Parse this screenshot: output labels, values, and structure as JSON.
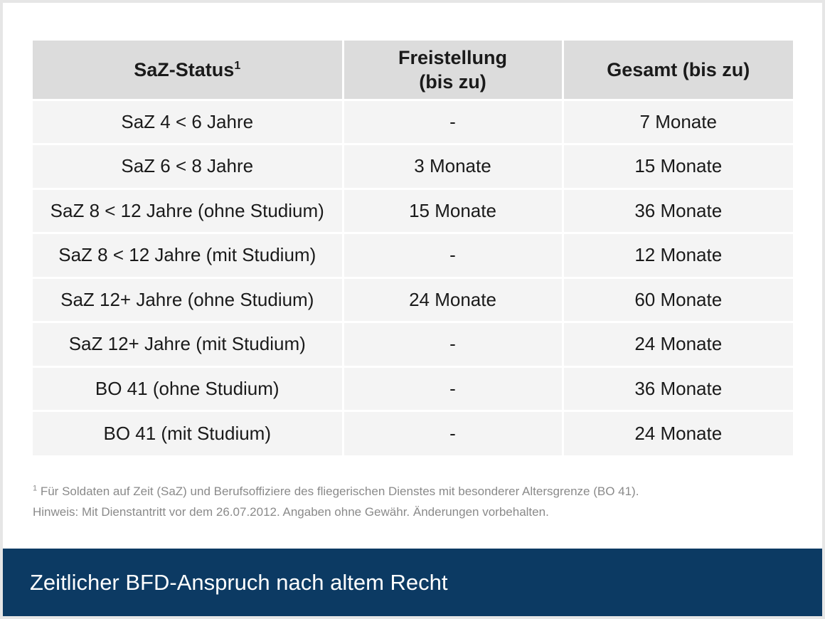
{
  "table": {
    "headers": {
      "status": "SaZ-Status",
      "status_sup": "1",
      "freistellung_line1": "Freistellung",
      "freistellung_line2": "(bis zu)",
      "gesamt": "Gesamt (bis zu)"
    },
    "rows": [
      {
        "status": "SaZ 4 < 6 Jahre",
        "freistellung": "-",
        "gesamt": "7 Monate"
      },
      {
        "status": "SaZ 6 < 8 Jahre",
        "freistellung": "3 Monate",
        "gesamt": "15 Monate"
      },
      {
        "status": "SaZ 8 < 12 Jahre (ohne Studium)",
        "freistellung": "15 Monate",
        "gesamt": "36 Monate"
      },
      {
        "status": "SaZ 8 < 12 Jahre (mit Studium)",
        "freistellung": "-",
        "gesamt": "12 Monate"
      },
      {
        "status": "SaZ 12+ Jahre (ohne Studium)",
        "freistellung": "24 Monate",
        "gesamt": "60 Monate"
      },
      {
        "status": "SaZ 12+ Jahre (mit Studium)",
        "freistellung": "-",
        "gesamt": "24 Monate"
      },
      {
        "status": "BO 41 (ohne Studium)",
        "freistellung": "-",
        "gesamt": "36 Monate"
      },
      {
        "status": "BO 41 (mit Studium)",
        "freistellung": "-",
        "gesamt": "24 Monate"
      }
    ]
  },
  "notes": {
    "footnote_marker": "1",
    "footnote": " Für Soldaten auf Zeit (SaZ) und Berufsoffiziere des fliegerischen Dienstes mit besonderer Altersgrenze (BO 41).",
    "hint": "Hinweis: Mit Dienstantritt vor dem 26.07.2012. Angaben ohne Gewähr. Änderungen vorbehalten."
  },
  "footer": {
    "title": "Zeitlicher BFD-Anspruch nach altem Recht"
  },
  "colors": {
    "footer_bg": "#0c3a63",
    "header_bg": "#dcdcdc",
    "row_bg": "#f4f4f4"
  }
}
